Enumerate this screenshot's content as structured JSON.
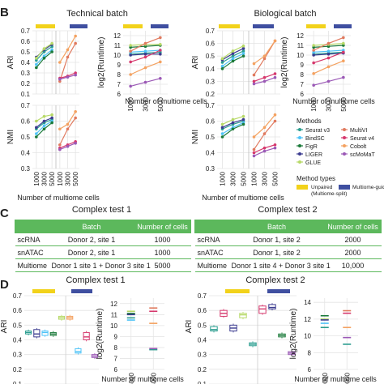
{
  "panel_letters": [
    "B",
    "C",
    "D"
  ],
  "colors": {
    "unpaired_bar": "#f2d21b",
    "guided_bar": "#3f4fa0",
    "table_green": "#5cb85c",
    "grid": "#e4e4e4"
  },
  "methods_legend": {
    "title": "Methods",
    "items": [
      {
        "name": "Seurat v3",
        "color": "#2a9d8f"
      },
      {
        "name": "MultiVI",
        "color": "#e07a5f"
      },
      {
        "name": "BindSC",
        "color": "#4fc3f7"
      },
      {
        "name": "Seurat v4",
        "color": "#d6386d"
      },
      {
        "name": "FigR",
        "color": "#1b7a3a"
      },
      {
        "name": "Cobolt",
        "color": "#f4a261"
      },
      {
        "name": "LIGER",
        "color": "#3b3b8f"
      },
      {
        "name": "scMoMaT",
        "color": "#9b59b6"
      },
      {
        "name": "GLUE",
        "color": "#b7d968"
      }
    ],
    "types_title": "Method types",
    "types": [
      {
        "name": "Unpaired\n(Multiome-split)",
        "color": "#f2d21b"
      },
      {
        "name": "Multiome-guided",
        "color": "#3f4fa0"
      }
    ]
  },
  "titles": {
    "b_left": "Technical batch",
    "b_right": "Biological batch",
    "c_left": "Complex test 1",
    "c_right": "Complex test 2",
    "d_left": "Complex test 1",
    "d_right": "Complex test 2"
  },
  "axis_text": {
    "ari": "ARI",
    "nmi": "NMI",
    "runtime": "log2(Runtime)",
    "xlabel": "Number of multiome cells"
  },
  "tables": {
    "header": [
      "Batch",
      "Number of cells"
    ],
    "test1": [
      {
        "label": "scRNA",
        "batch": "Donor 2, site 1",
        "cells": "1000"
      },
      {
        "label": "snATAC",
        "batch": "Donor 2, site 1",
        "cells": "1000"
      },
      {
        "label": "Multiome",
        "batch": "Donor 1 site 1 + Donor 3 site 1",
        "cells": "5000"
      }
    ],
    "test2": [
      {
        "label": "scRNA",
        "batch": "Donor 1, site 2",
        "cells": "2000"
      },
      {
        "label": "snATAC",
        "batch": "Donor 1, site 2",
        "cells": "2000"
      },
      {
        "label": "Multiome",
        "batch": "Donor 1 site 4 + Donor 3 site 1",
        "cells": "10,000"
      }
    ]
  },
  "chart_data": [
    {
      "id": "b-tech-ari",
      "type": "line",
      "ylabel": "ARI",
      "ylim": [
        0.1,
        0.7
      ],
      "yticks": [
        0.1,
        0.2,
        0.3,
        0.4,
        0.5,
        0.6,
        0.7
      ],
      "xticks": [],
      "grid": true,
      "series": [
        {
          "color": "#2a9d8f",
          "values": [
            0.42,
            0.5,
            0.55
          ]
        },
        {
          "color": "#3b3b8f",
          "values": [
            0.45,
            0.52,
            0.57
          ]
        },
        {
          "color": "#4fc3f7",
          "values": [
            0.38,
            0.46,
            0.52
          ]
        },
        {
          "color": "#1b7a3a",
          "values": [
            0.35,
            0.44,
            0.5
          ]
        },
        {
          "color": "#b7d968",
          "values": [
            0.44,
            0.53,
            0.58
          ]
        },
        {
          "color": "#e07a5f",
          "values": [
            0.22,
            0.45,
            0.58
          ]
        },
        {
          "color": "#d6386d",
          "values": [
            0.25,
            0.27,
            0.3
          ]
        },
        {
          "color": "#f4a261",
          "values": [
            0.4,
            0.52,
            0.65
          ]
        },
        {
          "color": "#9b59b6",
          "values": [
            0.24,
            0.26,
            0.28
          ]
        }
      ]
    },
    {
      "id": "b-tech-runtime",
      "type": "line",
      "ylabel": "log2(Runtime)",
      "ylim": [
        6,
        12.5
      ],
      "yticks": [
        6,
        7,
        8,
        9,
        10,
        11,
        12
      ],
      "xticks": [
        "1000",
        "3000",
        "5000"
      ],
      "grid": true,
      "series": [
        {
          "color": "#2a9d8f",
          "values": [
            10.1,
            10.2,
            10.3
          ]
        },
        {
          "color": "#3b3b8f",
          "values": [
            10.0,
            10.1,
            10.1
          ]
        },
        {
          "color": "#4fc3f7",
          "values": [
            10.3,
            10.4,
            10.5
          ]
        },
        {
          "color": "#1b7a3a",
          "values": [
            10.8,
            10.9,
            11.0
          ]
        },
        {
          "color": "#b7d968",
          "values": [
            11.0,
            11.1,
            11.1
          ]
        },
        {
          "color": "#e07a5f",
          "values": [
            10.4,
            11.2,
            11.8
          ]
        },
        {
          "color": "#d6386d",
          "values": [
            9.3,
            9.8,
            10.5
          ]
        },
        {
          "color": "#f4a261",
          "values": [
            8.0,
            8.7,
            9.3
          ]
        },
        {
          "color": "#9b59b6",
          "values": [
            6.8,
            7.2,
            7.6
          ]
        }
      ]
    },
    {
      "id": "b-tech-nmi",
      "type": "line",
      "ylabel": "NMI",
      "ylim": [
        0.3,
        0.7
      ],
      "yticks": [
        0.3,
        0.4,
        0.5,
        0.6,
        0.7
      ],
      "xticks": [
        "1000",
        "3000",
        "5000"
      ],
      "grid": true,
      "series": [
        {
          "color": "#2a9d8f",
          "values": [
            0.55,
            0.59,
            0.61
          ]
        },
        {
          "color": "#3b3b8f",
          "values": [
            0.56,
            0.6,
            0.62
          ]
        },
        {
          "color": "#4fc3f7",
          "values": [
            0.52,
            0.57,
            0.6
          ]
        },
        {
          "color": "#1b7a3a",
          "values": [
            0.5,
            0.55,
            0.59
          ]
        },
        {
          "color": "#b7d968",
          "values": [
            0.6,
            0.63,
            0.64
          ]
        },
        {
          "color": "#e07a5f",
          "values": [
            0.45,
            0.55,
            0.62
          ]
        },
        {
          "color": "#d6386d",
          "values": [
            0.43,
            0.45,
            0.47
          ]
        },
        {
          "color": "#f4a261",
          "values": [
            0.55,
            0.58,
            0.66
          ]
        },
        {
          "color": "#9b59b6",
          "values": [
            0.42,
            0.44,
            0.46
          ]
        }
      ]
    },
    {
      "id": "b-bio-ari",
      "type": "line",
      "ylabel": "ARI",
      "ylim": [
        0.2,
        0.7
      ],
      "yticks": [
        0.2,
        0.3,
        0.4,
        0.5,
        0.6,
        0.7
      ],
      "xticks": [],
      "grid": true,
      "series": [
        {
          "color": "#2a9d8f",
          "values": [
            0.45,
            0.5,
            0.54
          ]
        },
        {
          "color": "#3b3b8f",
          "values": [
            0.47,
            0.52,
            0.56
          ]
        },
        {
          "color": "#4fc3f7",
          "values": [
            0.42,
            0.48,
            0.52
          ]
        },
        {
          "color": "#1b7a3a",
          "values": [
            0.4,
            0.46,
            0.5
          ]
        },
        {
          "color": "#b7d968",
          "values": [
            0.48,
            0.54,
            0.58
          ]
        },
        {
          "color": "#e07a5f",
          "values": [
            0.35,
            0.48,
            0.62
          ]
        },
        {
          "color": "#d6386d",
          "values": [
            0.3,
            0.33,
            0.36
          ]
        },
        {
          "color": "#f4a261",
          "values": [
            0.44,
            0.5,
            0.62
          ]
        },
        {
          "color": "#9b59b6",
          "values": [
            0.28,
            0.3,
            0.33
          ]
        }
      ]
    },
    {
      "id": "b-bio-runtime",
      "type": "line",
      "ylabel": "log2(Runtime)",
      "ylim": [
        6,
        12.5
      ],
      "yticks": [
        6,
        7,
        8,
        9,
        10,
        11,
        12
      ],
      "xticks": [
        "1000",
        "3000",
        "5000"
      ],
      "grid": true,
      "series": [
        {
          "color": "#2a9d8f",
          "values": [
            10.1,
            10.2,
            10.3
          ]
        },
        {
          "color": "#3b3b8f",
          "values": [
            10.0,
            10.1,
            10.2
          ]
        },
        {
          "color": "#4fc3f7",
          "values": [
            10.3,
            10.4,
            10.5
          ]
        },
        {
          "color": "#1b7a3a",
          "values": [
            10.8,
            10.9,
            11.0
          ]
        },
        {
          "color": "#b7d968",
          "values": [
            11.0,
            11.1,
            11.2
          ]
        },
        {
          "color": "#e07a5f",
          "values": [
            10.5,
            11.2,
            11.8
          ]
        },
        {
          "color": "#d6386d",
          "values": [
            9.2,
            9.7,
            10.3
          ]
        },
        {
          "color": "#f4a261",
          "values": [
            8.1,
            8.8,
            9.4
          ]
        },
        {
          "color": "#9b59b6",
          "values": [
            6.9,
            7.3,
            7.7
          ]
        }
      ]
    },
    {
      "id": "b-bio-nmi",
      "type": "line",
      "ylabel": "NMI",
      "ylim": [
        0.3,
        0.7
      ],
      "yticks": [
        0.3,
        0.4,
        0.5,
        0.6,
        0.7
      ],
      "xticks": [
        "1000",
        "3000",
        "5000"
      ],
      "grid": true,
      "series": [
        {
          "color": "#2a9d8f",
          "values": [
            0.55,
            0.58,
            0.6
          ]
        },
        {
          "color": "#3b3b8f",
          "values": [
            0.56,
            0.59,
            0.61
          ]
        },
        {
          "color": "#4fc3f7",
          "values": [
            0.52,
            0.56,
            0.59
          ]
        },
        {
          "color": "#1b7a3a",
          "values": [
            0.5,
            0.55,
            0.58
          ]
        },
        {
          "color": "#b7d968",
          "values": [
            0.58,
            0.61,
            0.63
          ]
        },
        {
          "color": "#e07a5f",
          "values": [
            0.42,
            0.52,
            0.6
          ]
        },
        {
          "color": "#d6386d",
          "values": [
            0.4,
            0.43,
            0.45
          ]
        },
        {
          "color": "#f4a261",
          "values": [
            0.5,
            0.56,
            0.64
          ]
        },
        {
          "color": "#9b59b6",
          "values": [
            0.38,
            0.41,
            0.43
          ]
        }
      ]
    },
    {
      "id": "d-1-ari",
      "type": "box",
      "ylabel": "ARI",
      "ylim": [
        0.1,
        0.7
      ],
      "yticks": [
        0.1,
        0.2,
        0.3,
        0.4,
        0.5,
        0.6,
        0.7
      ],
      "boxes": [
        {
          "color": "#2a9d8f",
          "q1": 0.44,
          "med": 0.45,
          "q3": 0.46
        },
        {
          "color": "#3b3b8f",
          "q1": 0.42,
          "med": 0.44,
          "q3": 0.47
        },
        {
          "color": "#4fc3f7",
          "q1": 0.43,
          "med": 0.45,
          "q3": 0.46
        },
        {
          "color": "#1b7a3a",
          "q1": 0.43,
          "med": 0.44,
          "q3": 0.45
        },
        {
          "color": "#b7d968",
          "q1": 0.54,
          "med": 0.55,
          "q3": 0.56
        },
        {
          "color": "#f4a261",
          "q1": 0.54,
          "med": 0.55,
          "q3": 0.56
        },
        {
          "color": "#4fc3f7",
          "q1": 0.31,
          "med": 0.32,
          "q3": 0.34
        },
        {
          "color": "#d6386d",
          "q1": 0.4,
          "med": 0.42,
          "q3": 0.45
        },
        {
          "color": "#9b59b6",
          "q1": 0.28,
          "med": 0.29,
          "q3": 0.3
        }
      ]
    },
    {
      "id": "d-1-runtime",
      "type": "points",
      "ylabel": "log2(Runtime)",
      "ylim": [
        6,
        12.5
      ],
      "yticks": [
        6,
        7,
        8,
        9,
        10,
        11,
        12
      ],
      "xticks": [
        "5000",
        "5000"
      ],
      "points": [
        {
          "color": "#2a9d8f",
          "x": 0,
          "y": 10.7
        },
        {
          "color": "#4fc3f7",
          "x": 0,
          "y": 10.5
        },
        {
          "color": "#1b7a3a",
          "x": 0,
          "y": 11.1
        },
        {
          "color": "#b7d968",
          "x": 0,
          "y": 11.3
        },
        {
          "color": "#3b3b8f",
          "x": 0,
          "y": 11.0
        },
        {
          "color": "#e07a5f",
          "x": 1,
          "y": 11.6
        },
        {
          "color": "#d6386d",
          "x": 1,
          "y": 11.3
        },
        {
          "color": "#f4a261",
          "x": 1,
          "y": 10.2
        },
        {
          "color": "#2a9d8f",
          "x": 1,
          "y": 7.8
        },
        {
          "color": "#9b59b6",
          "x": 1,
          "y": 7.9
        }
      ]
    },
    {
      "id": "d-2-ari",
      "type": "box",
      "ylabel": "ARI",
      "ylim": [
        0.1,
        0.7
      ],
      "yticks": [
        0.1,
        0.2,
        0.3,
        0.4,
        0.5,
        0.6,
        0.7
      ],
      "boxes": [
        {
          "color": "#2a9d8f",
          "q1": 0.46,
          "med": 0.47,
          "q3": 0.49
        },
        {
          "color": "#d6386d",
          "q1": 0.56,
          "med": 0.58,
          "q3": 0.6
        },
        {
          "color": "#3b3b8f",
          "q1": 0.46,
          "med": 0.48,
          "q3": 0.5
        },
        {
          "color": "#b7d968",
          "q1": 0.55,
          "med": 0.57,
          "q3": 0.58
        },
        {
          "color": "#2a9d8f",
          "q1": 0.36,
          "med": 0.37,
          "q3": 0.38
        },
        {
          "color": "#d6386d",
          "q1": 0.58,
          "med": 0.61,
          "q3": 0.63
        },
        {
          "color": "#3b3b8f",
          "q1": 0.61,
          "med": 0.62,
          "q3": 0.64
        },
        {
          "color": "#1b7a3a",
          "q1": 0.42,
          "med": 0.43,
          "q3": 0.44
        },
        {
          "color": "#9b59b6",
          "q1": 0.3,
          "med": 0.31,
          "q3": 0.32
        }
      ]
    },
    {
      "id": "d-2-runtime",
      "type": "points",
      "ylabel": "log2(Runtime)",
      "ylim": [
        6,
        14.5
      ],
      "yticks": [
        6,
        8,
        10,
        12,
        14
      ],
      "xticks": [
        "10000",
        "10000"
      ],
      "points": [
        {
          "color": "#2a9d8f",
          "x": 0,
          "y": 11.0
        },
        {
          "color": "#4fc3f7",
          "x": 0,
          "y": 11.5
        },
        {
          "color": "#1b7a3a",
          "x": 0,
          "y": 12.4
        },
        {
          "color": "#b7d968",
          "x": 0,
          "y": 12.0
        },
        {
          "color": "#3b3b8f",
          "x": 0,
          "y": 11.9
        },
        {
          "color": "#e07a5f",
          "x": 1,
          "y": 13.0
        },
        {
          "color": "#d6386d",
          "x": 1,
          "y": 12.7
        },
        {
          "color": "#f4a261",
          "x": 1,
          "y": 11.0
        },
        {
          "color": "#9b59b6",
          "x": 1,
          "y": 9.8
        },
        {
          "color": "#2a9d8f",
          "x": 1,
          "y": 9.0
        }
      ]
    }
  ]
}
